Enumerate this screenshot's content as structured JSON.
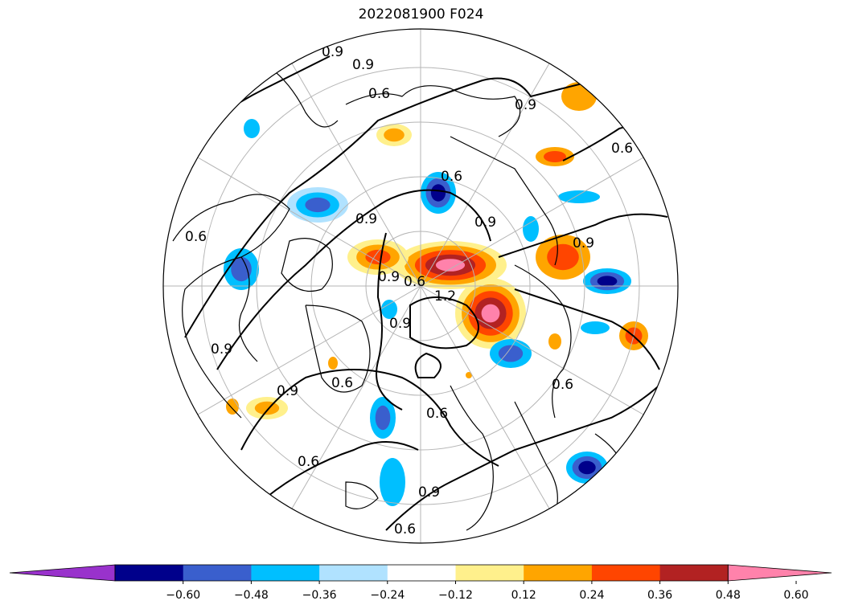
{
  "title": "2022081900 F024",
  "contour_labels": {
    "c1": "0.9",
    "c2": "0.9",
    "c3": "0.6",
    "c4": "0.9",
    "c5": "0.6",
    "c6": "0.9",
    "c7": "0.9",
    "c8": "0.9",
    "c9": "0.6",
    "c10": "0.6",
    "c11": "0.9",
    "c12": "1.2",
    "c13": "0.9",
    "c14": "0.6",
    "c15": "0.6",
    "c16": "0.9",
    "c17": "0.6",
    "c18": "0.9",
    "c19": "0.6",
    "c20": "0.6",
    "c21": "0.9",
    "c22": "0.6"
  },
  "colorbar": {
    "colors": [
      "#9932cc",
      "#00008b",
      "#3a5fcd",
      "#00bfff",
      "#b0e2ff",
      "#ffffff",
      "#fff08c",
      "#ffa500",
      "#ff4500",
      "#b22222",
      "#ff82ab"
    ],
    "ticks": [
      "−0.60",
      "−0.48",
      "−0.36",
      "−0.24",
      "−0.12",
      "0.12",
      "0.24",
      "0.36",
      "0.48",
      "0.60"
    ]
  },
  "fill_colors": {
    "neg1": "#b0e2ff",
    "neg2": "#00bfff",
    "neg3": "#3a5fcd",
    "neg4": "#00008b",
    "pos1": "#fff08c",
    "pos2": "#ffa500",
    "pos3": "#ff4500",
    "pos4": "#b22222",
    "pos5": "#ff82ab"
  }
}
